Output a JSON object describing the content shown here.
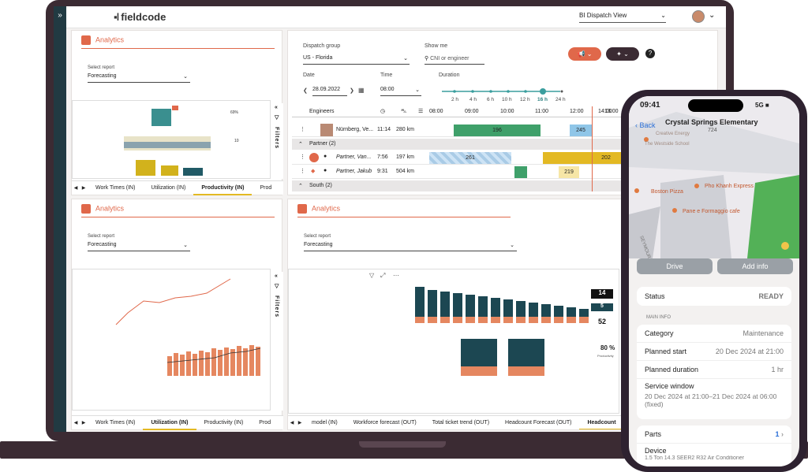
{
  "desktop": {
    "topbar": {
      "logo": "fieldcode",
      "view_select": "BI Dispatch View",
      "expand_label": "»"
    },
    "left_analytics": {
      "title": "Analytics",
      "select_label": "Select report",
      "select_value": "Forecasting",
      "tabs": [
        "Work Times (IN)",
        "Utilization (IN)",
        "Productivity (IN)",
        "Prod"
      ],
      "active_tab": 2,
      "filters_label": "Filters",
      "preview_kpi_1": "69%",
      "preview_kpi_2": "10"
    },
    "dispatch": {
      "group_label": "Dispatch group",
      "group_value": "US - Florida",
      "show_me_label": "Show me",
      "show_me_placeholder": "CNI or engineer",
      "date_label": "Date",
      "date_value": "28.09.2022",
      "time_label": "Time",
      "time_value": "08:00",
      "duration_label": "Duration",
      "duration_ticks": [
        "2 h",
        "4 h",
        "6 h",
        "10 h",
        "12 h",
        "16 h",
        "24 h"
      ],
      "duration_selected": "16 h",
      "engineers_header": "Engineers",
      "hours": [
        "08:00",
        "09:00",
        "10:00",
        "11:00",
        "12:00",
        "13:00",
        "14:00"
      ],
      "rows": [
        {
          "name": "Nürnberg, Ve...",
          "time": "11:14",
          "dist": "280 km",
          "bar1": "196",
          "bar2": "245"
        },
        {
          "group": "Partner (2)"
        },
        {
          "name": "Partner, Van...",
          "time": "7:56",
          "dist": "197 km",
          "bar1": "261",
          "bar2": "202"
        },
        {
          "name": "Partner, Jakub",
          "time": "9:31",
          "dist": "504 km",
          "bar2": "219"
        },
        {
          "group": "South (2)"
        }
      ],
      "accent_color": "#e0684a"
    },
    "bottom_left_analytics": {
      "title": "Analytics",
      "select_label": "Select report",
      "select_value": "Forecasting",
      "tabs": [
        "Work Times (IN)",
        "Utilization (IN)",
        "Productivity (IN)",
        "Prod"
      ],
      "active_tab": 1,
      "filters_label": "Filters"
    },
    "bottom_right_analytics": {
      "title": "Analytics",
      "select_label": "Select report",
      "select_value": "Forecasting",
      "tabs": [
        "model (IN)",
        "Workforce forecast (OUT)",
        "Total ticket trend (OUT)",
        "Headcount Forecast (OUT)",
        "Headcount"
      ],
      "active_tab": 4,
      "kpi_1": "14",
      "kpi_2": "5",
      "kpi_3": "52",
      "kpi_pct": "80 %",
      "kpi_pct_label": "Productivity"
    }
  },
  "phone": {
    "time": "09:41",
    "signal": "5G",
    "battery": "■",
    "back_label": "Back",
    "title": "Crystal Springs Elementary",
    "subtitle": "724",
    "map_labels": [
      "Creative Energy",
      "The Westside School",
      "Boston Pizza",
      "Pho Khanh Express",
      "Pane e Formaggio cafe",
      "SEYMOUR"
    ],
    "drive_label": "Drive",
    "add_info_label": "Add info",
    "status_label": "Status",
    "status_value": "READY",
    "main_info_label": "MAIN INFO",
    "category_label": "Category",
    "category_value": "Maintenance",
    "planned_start_label": "Planned start",
    "planned_start_value": "20 Dec 2024 at 21:00",
    "planned_duration_label": "Planned duration",
    "planned_duration_value": "1 hr",
    "service_window_label": "Service window",
    "service_window_value": "20 Dec 2024 at 21:00–21 Dec 2024 at 06:00 (fixed)",
    "parts_label": "Parts",
    "parts_value": "1",
    "device_label": "Device",
    "device_value": "1.5 Ton 14.3 SEER2 R32 Air Conditioner"
  }
}
